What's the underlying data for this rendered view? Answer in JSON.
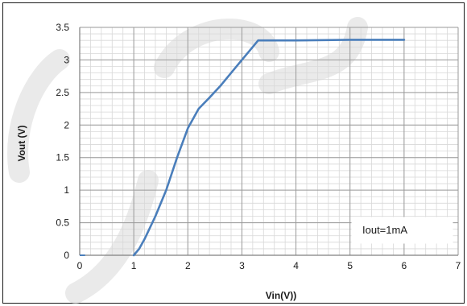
{
  "chart_data": {
    "type": "line",
    "title": "",
    "xlabel": "Vin(V))",
    "ylabel": "Vout (V)",
    "xlim": [
      0,
      7
    ],
    "ylim": [
      0,
      3.5
    ],
    "x_ticks": [
      "0",
      "1",
      "2",
      "3",
      "4",
      "5",
      "6",
      "7"
    ],
    "y_ticks": [
      "0",
      "0.5",
      "1",
      "1.5",
      "2",
      "2.5",
      "3",
      "3.5"
    ],
    "x_tick_values": [
      0,
      1,
      2,
      3,
      4,
      5,
      6,
      7
    ],
    "y_tick_values": [
      0,
      0.5,
      1,
      1.5,
      2,
      2.5,
      3,
      3.5
    ],
    "grid": true,
    "minor_grid": true,
    "series": [
      {
        "color": "#4a7ebb",
        "x": [
          0,
          0.1,
          1.0,
          1.1,
          1.2,
          1.4,
          1.6,
          1.8,
          2.0,
          2.2,
          2.4,
          2.6,
          2.8,
          3.0,
          3.2,
          3.3,
          3.5,
          4.0,
          5.0,
          6.0
        ],
        "y": [
          0,
          0,
          0,
          0.1,
          0.25,
          0.6,
          1.0,
          1.5,
          1.95,
          2.25,
          2.42,
          2.6,
          2.8,
          3.0,
          3.2,
          3.3,
          3.3,
          3.3,
          3.31,
          3.31
        ]
      }
    ],
    "annotations": [
      {
        "text": "Iout=1mA"
      }
    ]
  }
}
